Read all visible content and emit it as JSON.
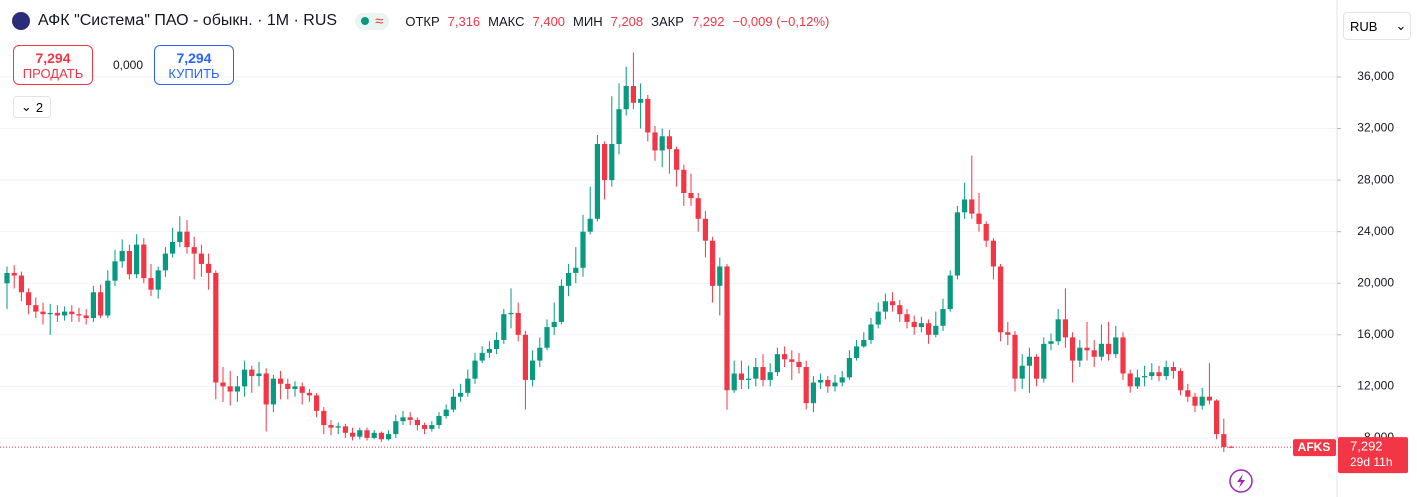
{
  "header": {
    "symbol": "АФК \"Система\" ПАО - обыкн. · 1M · RUS",
    "open_label": "ОТКР",
    "open": "7,316",
    "high_label": "МАКС",
    "high": "7,400",
    "low_label": "МИН",
    "low": "7,208",
    "close_label": "ЗАКР",
    "close": "7,292",
    "change": "−0,009 (−0,12%)",
    "sell_price": "7,294",
    "sell_label": "ПРОДАТЬ",
    "spread": "0,000",
    "buy_price": "7,294",
    "buy_label": "КУПИТЬ",
    "indicators": "2",
    "currency": "RUB",
    "price_label": "7,292",
    "countdown": "29d 11h"
  },
  "chart_data": {
    "type": "candlestick",
    "ylim": [
      3.73,
      41.97
    ],
    "yticks": [
      {
        "value": 8,
        "label": "8,000"
      },
      {
        "value": 12,
        "label": "12,000"
      },
      {
        "value": 16,
        "label": "16,000"
      },
      {
        "value": 20,
        "label": "20,000"
      },
      {
        "value": 24,
        "label": "24,000"
      },
      {
        "value": 28,
        "label": "28,000"
      },
      {
        "value": 32,
        "label": "32,000"
      },
      {
        "value": 36,
        "label": "36,000"
      }
    ],
    "grid": true,
    "last_price": 7.292,
    "series": [
      {
        "name": "AFKS",
        "up_color": "#089981",
        "down_color": "#f23645",
        "ohlc": [
          [
            20.0,
            21.3,
            18.0,
            20.8
          ],
          [
            20.8,
            21.4,
            19.6,
            20.6
          ],
          [
            20.6,
            20.9,
            18.6,
            19.3
          ],
          [
            19.3,
            19.6,
            17.6,
            18.3
          ],
          [
            18.3,
            18.9,
            17.3,
            17.8
          ],
          [
            17.8,
            18.5,
            16.8,
            17.6
          ],
          [
            17.6,
            18.4,
            16.0,
            17.7
          ],
          [
            17.7,
            18.3,
            17.0,
            17.5
          ],
          [
            17.5,
            18.2,
            17.1,
            17.8
          ],
          [
            17.8,
            18.3,
            17.0,
            17.6
          ],
          [
            17.6,
            18.1,
            17.0,
            17.5
          ],
          [
            17.5,
            18.0,
            16.8,
            17.3
          ],
          [
            17.3,
            19.8,
            17.0,
            19.3
          ],
          [
            19.3,
            19.9,
            17.3,
            17.5
          ],
          [
            17.5,
            21.0,
            17.3,
            20.2
          ],
          [
            20.2,
            22.6,
            19.8,
            21.7
          ],
          [
            21.7,
            23.4,
            21.2,
            22.5
          ],
          [
            22.5,
            23.0,
            20.3,
            20.7
          ],
          [
            20.7,
            23.8,
            20.4,
            23.0
          ],
          [
            23.0,
            23.5,
            20.0,
            20.4
          ],
          [
            20.4,
            21.5,
            19.0,
            19.5
          ],
          [
            19.5,
            21.3,
            18.8,
            21.0
          ],
          [
            21.0,
            22.8,
            20.5,
            22.3
          ],
          [
            22.3,
            24.3,
            22.0,
            23.2
          ],
          [
            23.2,
            25.2,
            22.8,
            24.0
          ],
          [
            24.0,
            24.9,
            22.3,
            22.8
          ],
          [
            22.8,
            23.6,
            20.3,
            22.3
          ],
          [
            22.3,
            23.0,
            20.5,
            21.5
          ],
          [
            21.5,
            22.3,
            19.5,
            20.8
          ],
          [
            20.8,
            21.0,
            11.0,
            12.3
          ],
          [
            12.3,
            13.5,
            10.8,
            12.0
          ],
          [
            12.0,
            13.2,
            10.5,
            11.6
          ],
          [
            11.6,
            12.8,
            10.8,
            12.0
          ],
          [
            12.0,
            14.0,
            11.2,
            13.3
          ],
          [
            13.3,
            13.6,
            11.5,
            12.8
          ],
          [
            12.8,
            13.9,
            12.0,
            13.0
          ],
          [
            13.0,
            13.4,
            8.5,
            10.6
          ],
          [
            10.6,
            12.9,
            10.0,
            12.6
          ],
          [
            12.6,
            13.2,
            11.0,
            12.2
          ],
          [
            12.2,
            12.6,
            11.0,
            11.8
          ],
          [
            11.8,
            12.4,
            11.2,
            12.0
          ],
          [
            12.0,
            12.3,
            10.6,
            11.5
          ],
          [
            11.5,
            11.8,
            10.8,
            11.3
          ],
          [
            11.3,
            11.5,
            9.6,
            10.1
          ],
          [
            10.1,
            10.4,
            8.3,
            9.0
          ],
          [
            9.0,
            9.4,
            8.2,
            8.8
          ],
          [
            8.8,
            9.2,
            8.3,
            8.9
          ],
          [
            8.9,
            9.1,
            8.0,
            8.4
          ],
          [
            8.4,
            8.8,
            7.8,
            8.1
          ],
          [
            8.1,
            8.8,
            7.9,
            8.6
          ],
          [
            8.6,
            8.8,
            7.8,
            8.0
          ],
          [
            8.0,
            8.6,
            7.9,
            8.4
          ],
          [
            8.4,
            8.5,
            7.7,
            7.9
          ],
          [
            7.9,
            8.6,
            7.8,
            8.3
          ],
          [
            8.3,
            9.8,
            8.0,
            9.3
          ],
          [
            9.3,
            10.1,
            9.0,
            9.6
          ],
          [
            9.6,
            10.0,
            9.0,
            9.4
          ],
          [
            9.4,
            9.6,
            8.6,
            9.0
          ],
          [
            9.0,
            9.2,
            8.3,
            8.7
          ],
          [
            8.7,
            9.3,
            8.5,
            9.0
          ],
          [
            9.0,
            10.0,
            8.7,
            9.7
          ],
          [
            9.7,
            10.6,
            9.5,
            10.2
          ],
          [
            10.2,
            11.8,
            10.0,
            11.2
          ],
          [
            11.2,
            12.2,
            10.8,
            11.5
          ],
          [
            11.5,
            13.3,
            11.2,
            12.6
          ],
          [
            12.6,
            14.6,
            12.2,
            14.0
          ],
          [
            14.0,
            15.1,
            13.8,
            14.6
          ],
          [
            14.6,
            15.5,
            14.2,
            14.9
          ],
          [
            14.9,
            16.2,
            14.5,
            15.6
          ],
          [
            15.6,
            18.0,
            15.3,
            17.6
          ],
          [
            17.6,
            19.6,
            16.5,
            17.7
          ],
          [
            17.7,
            18.5,
            15.5,
            16.0
          ],
          [
            16.0,
            16.3,
            10.2,
            12.5
          ],
          [
            12.5,
            14.8,
            12.0,
            14.0
          ],
          [
            14.0,
            15.8,
            13.5,
            15.0
          ],
          [
            15.0,
            17.2,
            14.8,
            16.6
          ],
          [
            16.6,
            18.5,
            16.0,
            17.0
          ],
          [
            17.0,
            20.3,
            16.8,
            19.8
          ],
          [
            19.8,
            21.5,
            19.0,
            20.8
          ],
          [
            20.8,
            22.8,
            20.0,
            21.2
          ],
          [
            21.2,
            25.3,
            20.5,
            24.0
          ],
          [
            24.0,
            27.5,
            23.8,
            25.0
          ],
          [
            25.0,
            31.5,
            24.8,
            30.8
          ],
          [
            30.8,
            31.0,
            26.5,
            28.0
          ],
          [
            28.0,
            34.5,
            27.5,
            30.8
          ],
          [
            30.8,
            35.5,
            30.0,
            33.5
          ],
          [
            33.5,
            36.8,
            33.0,
            35.3
          ],
          [
            35.3,
            37.9,
            33.5,
            34.0
          ],
          [
            34.0,
            35.5,
            32.0,
            34.3
          ],
          [
            34.3,
            34.6,
            31.0,
            31.7
          ],
          [
            31.7,
            32.2,
            29.5,
            30.3
          ],
          [
            30.3,
            32.0,
            29.0,
            31.4
          ],
          [
            31.4,
            31.9,
            28.5,
            30.4
          ],
          [
            30.4,
            30.6,
            27.5,
            28.8
          ],
          [
            28.8,
            29.2,
            26.0,
            27.0
          ],
          [
            27.0,
            28.5,
            26.0,
            26.6
          ],
          [
            26.6,
            27.0,
            24.0,
            25.0
          ],
          [
            25.0,
            25.6,
            22.0,
            23.3
          ],
          [
            23.3,
            23.6,
            18.5,
            19.8
          ],
          [
            19.8,
            22.0,
            17.5,
            21.3
          ],
          [
            21.3,
            21.5,
            10.2,
            11.7
          ],
          [
            11.7,
            14.0,
            11.5,
            13.0
          ],
          [
            13.0,
            14.0,
            11.8,
            12.5
          ],
          [
            12.5,
            13.6,
            11.8,
            12.6
          ],
          [
            12.6,
            14.2,
            12.0,
            13.5
          ],
          [
            13.5,
            14.5,
            12.0,
            12.5
          ],
          [
            12.5,
            13.8,
            12.0,
            13.1
          ],
          [
            13.1,
            15.0,
            12.8,
            14.5
          ],
          [
            14.5,
            15.1,
            13.5,
            14.1
          ],
          [
            14.1,
            14.8,
            12.5,
            13.9
          ],
          [
            13.9,
            14.6,
            13.0,
            13.5
          ],
          [
            13.5,
            14.0,
            10.2,
            10.7
          ],
          [
            10.7,
            12.8,
            10.0,
            12.3
          ],
          [
            12.3,
            13.0,
            11.8,
            12.5
          ],
          [
            12.5,
            12.8,
            11.5,
            12.0
          ],
          [
            12.0,
            12.9,
            11.6,
            12.3
          ],
          [
            12.3,
            13.2,
            12.0,
            12.7
          ],
          [
            12.7,
            14.8,
            12.5,
            14.2
          ],
          [
            14.2,
            15.6,
            14.0,
            15.1
          ],
          [
            15.1,
            16.2,
            15.0,
            15.6
          ],
          [
            15.6,
            17.3,
            15.3,
            16.8
          ],
          [
            16.8,
            18.5,
            16.5,
            17.8
          ],
          [
            17.8,
            19.2,
            17.2,
            18.6
          ],
          [
            18.6,
            19.3,
            17.8,
            18.3
          ],
          [
            18.3,
            18.7,
            17.0,
            17.6
          ],
          [
            17.6,
            18.0,
            16.5,
            17.0
          ],
          [
            17.0,
            17.5,
            16.0,
            16.6
          ],
          [
            16.6,
            17.4,
            16.2,
            16.9
          ],
          [
            16.9,
            17.2,
            15.3,
            16.0
          ],
          [
            16.0,
            17.8,
            15.8,
            16.7
          ],
          [
            16.7,
            18.8,
            16.3,
            18.0
          ],
          [
            18.0,
            21.0,
            17.8,
            20.6
          ],
          [
            20.6,
            26.0,
            20.3,
            25.5
          ],
          [
            25.5,
            27.8,
            25.0,
            26.5
          ],
          [
            26.5,
            29.9,
            25.0,
            25.4
          ],
          [
            25.4,
            27.0,
            24.0,
            24.6
          ],
          [
            24.6,
            24.8,
            22.8,
            23.3
          ],
          [
            23.3,
            23.5,
            20.3,
            21.3
          ],
          [
            21.3,
            21.5,
            15.5,
            16.2
          ],
          [
            16.2,
            17.0,
            15.2,
            16.0
          ],
          [
            16.0,
            16.3,
            11.6,
            12.6
          ],
          [
            12.6,
            14.5,
            11.8,
            13.6
          ],
          [
            13.6,
            15.0,
            11.5,
            14.3
          ],
          [
            14.3,
            14.5,
            12.0,
            12.6
          ],
          [
            12.6,
            15.8,
            12.3,
            15.3
          ],
          [
            15.3,
            16.1,
            14.8,
            15.5
          ],
          [
            15.5,
            18.0,
            15.2,
            17.2
          ],
          [
            17.2,
            19.6,
            15.0,
            15.8
          ],
          [
            15.8,
            16.2,
            12.3,
            14.0
          ],
          [
            14.0,
            15.6,
            13.5,
            15.0
          ],
          [
            15.0,
            17.0,
            14.0,
            14.8
          ],
          [
            14.8,
            15.6,
            13.5,
            14.3
          ],
          [
            14.3,
            16.8,
            14.0,
            15.3
          ],
          [
            15.3,
            17.0,
            14.0,
            14.5
          ],
          [
            14.5,
            16.7,
            14.2,
            15.8
          ],
          [
            15.8,
            16.2,
            12.5,
            13.0
          ],
          [
            13.0,
            13.3,
            11.5,
            12.0
          ],
          [
            12.0,
            13.3,
            11.8,
            12.7
          ],
          [
            12.7,
            13.6,
            12.0,
            12.8
          ],
          [
            12.8,
            13.8,
            12.5,
            13.1
          ],
          [
            13.1,
            13.6,
            12.4,
            12.8
          ],
          [
            12.8,
            14.0,
            12.5,
            13.5
          ],
          [
            13.5,
            13.9,
            12.6,
            13.2
          ],
          [
            13.2,
            13.4,
            11.3,
            11.7
          ],
          [
            11.7,
            12.2,
            10.8,
            11.2
          ],
          [
            11.2,
            11.5,
            10.0,
            10.5
          ],
          [
            10.5,
            11.9,
            10.2,
            11.2
          ],
          [
            11.2,
            13.8,
            10.6,
            10.9
          ],
          [
            10.9,
            11.0,
            7.9,
            8.3
          ],
          [
            8.3,
            9.5,
            6.9,
            7.3
          ],
          [
            7.316,
            7.4,
            7.208,
            7.292
          ]
        ]
      }
    ]
  }
}
